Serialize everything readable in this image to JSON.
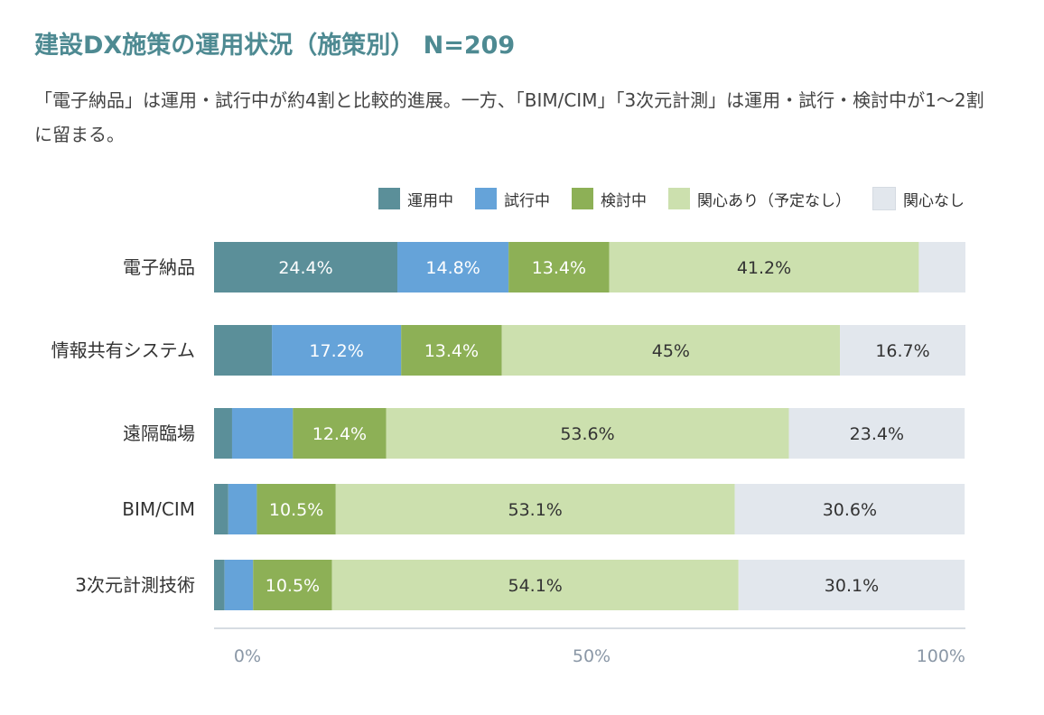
{
  "title": "建設DX施策の運用状況（施策別） N=209",
  "subtitle": "「電子納品」は運用・試行中が約4割と比較的進展。一方、「BIM/CIM」「3次元計測」は運用・試行・検討中が1〜2割に留まる。",
  "chart_data": {
    "type": "bar",
    "orientation": "horizontal",
    "stacked": true,
    "xlim": [
      0,
      100
    ],
    "xticks": [
      "0%",
      "50%",
      "100%"
    ],
    "legend_position": "top-right",
    "categories": [
      "電子納品",
      "情報共有システム",
      "遠隔臨場",
      "BIM/CIM",
      "3次元計測技術"
    ],
    "series": [
      {
        "name": "運用中",
        "color": "#5B8F99",
        "values": [
          24.4,
          7.7,
          2.4,
          1.9,
          1.4
        ],
        "labels": [
          "24.4%",
          null,
          null,
          null,
          null
        ],
        "label_color": "#ffffff"
      },
      {
        "name": "試行中",
        "color": "#65A3D9",
        "values": [
          14.8,
          17.2,
          8.1,
          3.8,
          3.8
        ],
        "labels": [
          "14.8%",
          "17.2%",
          null,
          null,
          null
        ],
        "label_color": "#ffffff"
      },
      {
        "name": "検討中",
        "color": "#8DB056",
        "values": [
          13.4,
          13.4,
          12.4,
          10.5,
          10.5
        ],
        "labels": [
          "13.4%",
          "13.4%",
          "12.4%",
          "10.5%",
          "10.5%"
        ],
        "label_color": "#ffffff"
      },
      {
        "name": "関心あり（予定なし）",
        "color": "#CCE0AE",
        "values": [
          41.2,
          45,
          53.6,
          53.1,
          54.1
        ],
        "labels": [
          "41.2%",
          "45%",
          "53.6%",
          "53.1%",
          "54.1%"
        ],
        "label_color": "#333333"
      },
      {
        "name": "関心なし",
        "color": "#E2E7ED",
        "values": [
          6.2,
          16.7,
          23.4,
          30.6,
          30.1
        ],
        "labels": [
          null,
          "16.7%",
          "23.4%",
          "30.6%",
          "30.1%"
        ],
        "label_color": "#333333"
      }
    ]
  }
}
